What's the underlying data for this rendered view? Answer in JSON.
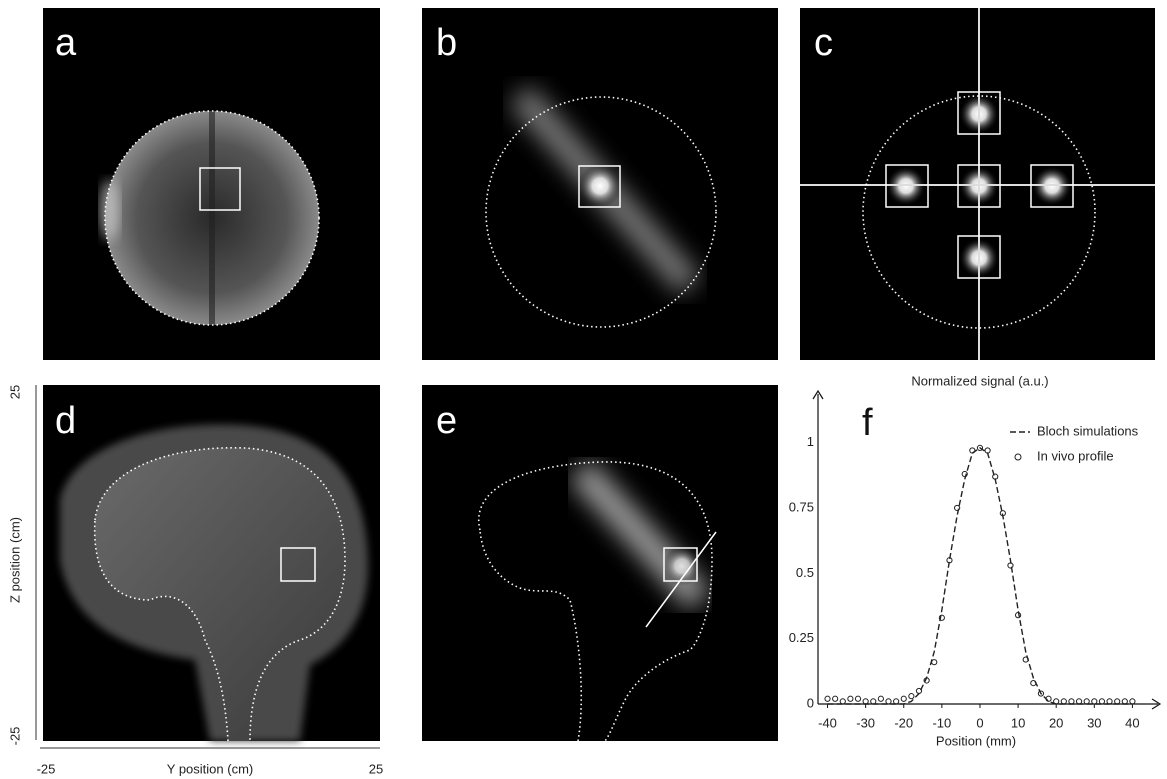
{
  "panels": [
    {
      "label": "a"
    },
    {
      "label": "b"
    },
    {
      "label": "c"
    },
    {
      "label": "d"
    },
    {
      "label": "e"
    }
  ],
  "panel_d_axes": {
    "y_label": "Z position (cm)",
    "y_top": "25",
    "y_bottom": "-25",
    "x_label": "Y position (cm)",
    "x_left": "-25",
    "x_right": "25"
  },
  "chart_data": {
    "type": "line",
    "label": "f",
    "ylabel": "Normalized signal (a.u.)",
    "xlabel": "Position (mm)",
    "x": [
      -40,
      -38,
      -36,
      -34,
      -32,
      -30,
      -28,
      -26,
      -24,
      -22,
      -20,
      -18,
      -16,
      -14,
      -12,
      -10,
      -8,
      -6,
      -4,
      -2,
      0,
      2,
      4,
      6,
      8,
      10,
      12,
      14,
      16,
      18,
      20,
      22,
      24,
      26,
      28,
      30,
      32,
      34,
      36,
      38,
      40
    ],
    "series": [
      {
        "name": "Bloch simulations",
        "color": "#222222",
        "line_style": "dashed",
        "marker": "none",
        "values": [
          0,
          0,
          0,
          0,
          0,
          0,
          0,
          0,
          0,
          0,
          0,
          0.01,
          0.04,
          0.1,
          0.2,
          0.36,
          0.55,
          0.72,
          0.86,
          0.96,
          0.98,
          0.96,
          0.86,
          0.72,
          0.55,
          0.36,
          0.2,
          0.1,
          0.04,
          0.01,
          0,
          0,
          0,
          0,
          0,
          0,
          0,
          0,
          0,
          0,
          0
        ]
      },
      {
        "name": "In vivo profile",
        "color": "#222222",
        "line_style": "none",
        "marker": "circle",
        "values": [
          0.02,
          0.02,
          0.01,
          0.02,
          0.02,
          0.01,
          0.01,
          0.02,
          0.01,
          0.01,
          0.02,
          0.03,
          0.05,
          0.09,
          0.16,
          0.33,
          0.55,
          0.75,
          0.88,
          0.97,
          0.98,
          0.97,
          0.87,
          0.73,
          0.53,
          0.34,
          0.17,
          0.08,
          0.04,
          0.02,
          0.01,
          0.01,
          0.01,
          0.01,
          0.01,
          0.01,
          0.01,
          0.01,
          0.01,
          0.01,
          0.01
        ]
      }
    ],
    "xlim": [
      -42.5,
      47.5
    ],
    "ylim": [
      0,
      1.19
    ],
    "xticks": [
      -40,
      -30,
      -20,
      -10,
      0,
      10,
      20,
      30,
      40
    ],
    "yticks": [
      0,
      0.25,
      0.5,
      0.75,
      1
    ],
    "grid": false
  }
}
